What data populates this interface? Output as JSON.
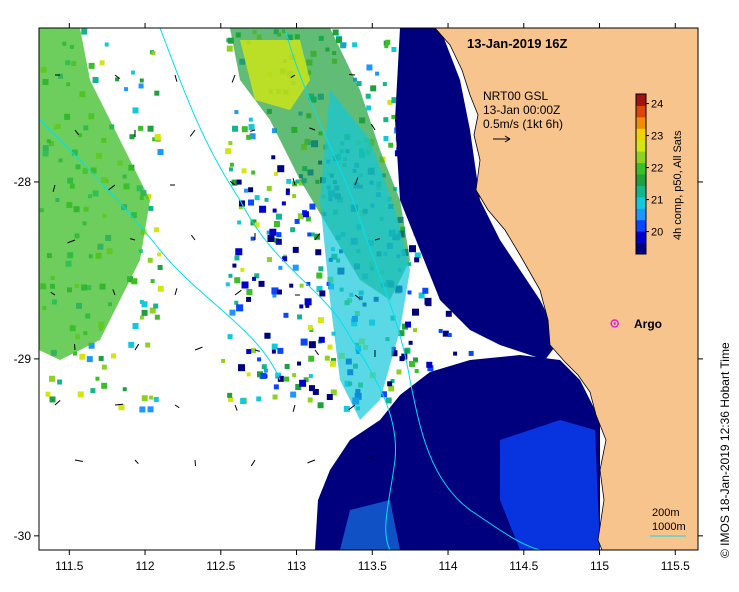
{
  "title": "13-Jan-2019 16Z",
  "current_legend": {
    "line1": "NRT00 GSL",
    "line2": "13-Jan 00:00Z",
    "line3": "0.5m/s (1kt 6h)"
  },
  "colorbar": {
    "label": "4h comp, p50, All Sats",
    "ticks": [
      "20",
      "21",
      "22",
      "23",
      "24"
    ],
    "range": [
      19.3,
      24.3
    ],
    "colors": [
      "#00007f",
      "#0000c8",
      "#0a46ff",
      "#1e96ff",
      "#14c8dc",
      "#14b48c",
      "#1ea03c",
      "#3cbe28",
      "#8cd21e",
      "#d2e614",
      "#f0d20a",
      "#f08c0a",
      "#dc460a",
      "#a01414"
    ]
  },
  "axes": {
    "x_ticks": [
      "111.5",
      "112",
      "112.5",
      "113",
      "113.5",
      "114",
      "114.5",
      "115",
      "115.5"
    ],
    "x_values": [
      111.5,
      112,
      112.5,
      113,
      113.5,
      114,
      114.5,
      115,
      115.5
    ],
    "y_ticks": [
      "-28",
      "-29",
      "-30"
    ],
    "y_values": [
      -28,
      -29,
      -30
    ],
    "lon_range": [
      111.3,
      115.65
    ],
    "lat_range": [
      -27.13,
      -30.08
    ]
  },
  "argo_label": "Argo",
  "argo_position": {
    "lon": 115.1,
    "lat": -28.8
  },
  "scale_bar": {
    "line1": "200m",
    "line2": "1000m"
  },
  "credit": "© IMOS 18-Jan-2019 12:36 Hobart Time",
  "colors": {
    "land": "#f8c48e",
    "deep": "#00007f",
    "isobath": "#00e0f0",
    "argo": "#e020e0"
  }
}
